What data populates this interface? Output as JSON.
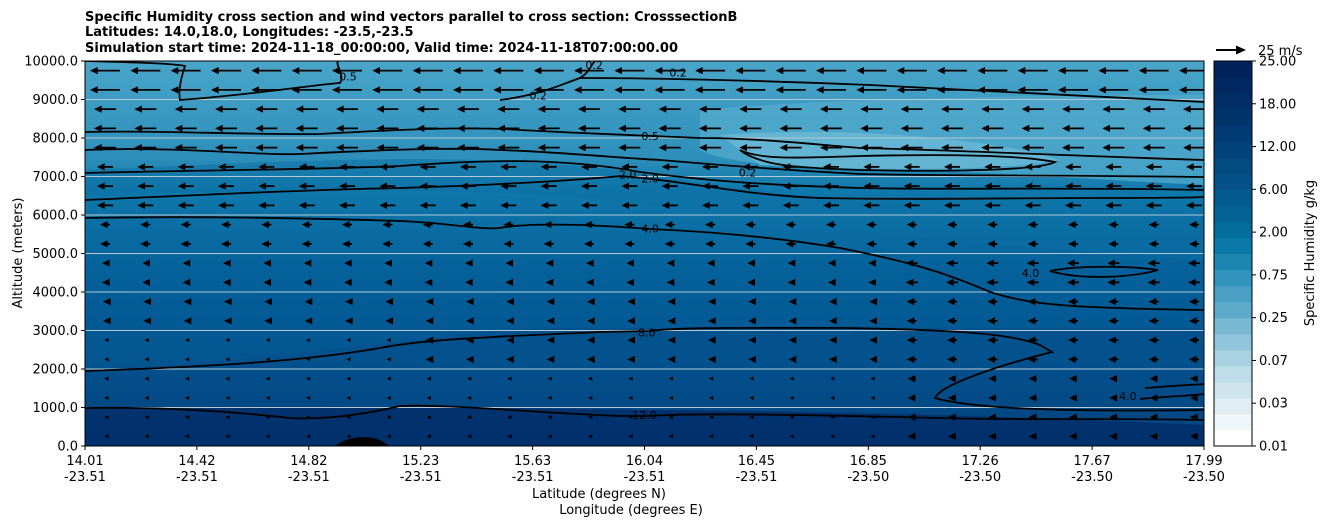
{
  "chart_data": {
    "type": "contour",
    "title": [
      "Specific Humidity cross section and wind vectors parallel to cross section: CrosssectionB",
      "Latitudes: 14.0,18.0, Longitudes: -23.5,-23.5",
      "Simulation start time: 2024-11-18_00:00:00, Valid time: 2024-11-18T07:00:00.00"
    ],
    "xlabel_lat": "Latitude (degrees N)",
    "xlabel_lon": "Longitude (degrees E)",
    "ylabel": "Altitude (meters)",
    "ylim": [
      0,
      10000
    ],
    "y_ticks": [
      "0.0",
      "1000.0",
      "2000.0",
      "3000.0",
      "4000.0",
      "5000.0",
      "6000.0",
      "7000.0",
      "8000.0",
      "9000.0",
      "10000.0"
    ],
    "x_ticks": [
      {
        "lat": "14.01",
        "lon": "-23.51"
      },
      {
        "lat": "14.42",
        "lon": "-23.51"
      },
      {
        "lat": "14.82",
        "lon": "-23.51"
      },
      {
        "lat": "15.23",
        "lon": "-23.51"
      },
      {
        "lat": "15.63",
        "lon": "-23.51"
      },
      {
        "lat": "16.04",
        "lon": "-23.51"
      },
      {
        "lat": "16.45",
        "lon": "-23.51"
      },
      {
        "lat": "16.85",
        "lon": "-23.50"
      },
      {
        "lat": "17.26",
        "lon": "-23.50"
      },
      {
        "lat": "17.67",
        "lon": "-23.50"
      },
      {
        "lat": "17.99",
        "lon": "-23.50"
      }
    ],
    "colorbar": {
      "label": "Specific Humidity g/kg",
      "ticks": [
        "0.01",
        "0.03",
        "0.07",
        "0.25",
        "0.75",
        "2.00",
        "6.00",
        "12.00",
        "18.00",
        "25.00"
      ]
    },
    "quiver_key": "25 m/s",
    "contour_labels": [
      {
        "text": "0.2",
        "x": 0.53,
        "y": 9700
      },
      {
        "text": "0.2",
        "x": 0.405,
        "y": 9100
      },
      {
        "text": "0.2",
        "x": 0.455,
        "y": 9900
      },
      {
        "text": "0.5",
        "x": 0.235,
        "y": 9600
      },
      {
        "text": "0.5",
        "x": 0.505,
        "y": 8050
      },
      {
        "text": "0.2",
        "x": 0.592,
        "y": 7100
      },
      {
        "text": "2.0",
        "x": 0.485,
        "y": 7050
      },
      {
        "text": "2.0",
        "x": 0.505,
        "y": 6950
      },
      {
        "text": "4.0",
        "x": 0.505,
        "y": 5650
      },
      {
        "text": "4.0",
        "x": 0.845,
        "y": 4500
      },
      {
        "text": "8.0",
        "x": 0.502,
        "y": 2950
      },
      {
        "text": "12.0",
        "x": 0.5,
        "y": 800
      },
      {
        "text": "4.0",
        "x": 0.932,
        "y": 1300
      }
    ],
    "colors": {
      "background_high": "#3a9bc2",
      "mid": "#0a72a6",
      "low": "#004b87",
      "surface": "#04306a"
    }
  }
}
